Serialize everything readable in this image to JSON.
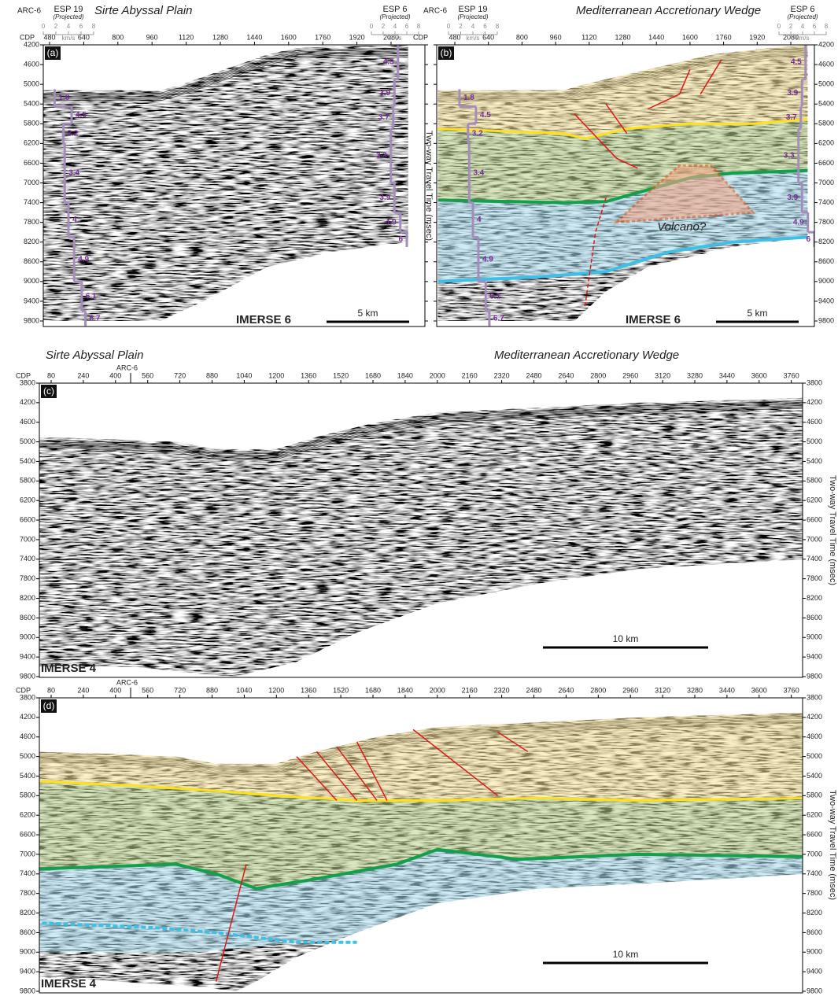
{
  "titles": {
    "sirte": "Sirte Abyssal Plain",
    "wedge": "Mediterranean Accretionary Wedge"
  },
  "labels": {
    "cdp": "CDP",
    "twt_axis": "Two-way Travel Time (msec)",
    "arc": "ARC-6",
    "esp19": "ESP 19",
    "esp6": "ESP 6",
    "projected": "(Projected)",
    "kms": "km/s",
    "volcano": "Volcano?"
  },
  "letters": [
    "(a)",
    "(b)",
    "(c)",
    "(d)"
  ],
  "top": {
    "section": "IMERSE 6",
    "scale": "5 km",
    "cdp_ticks": [
      480,
      640,
      800,
      960,
      1120,
      1280,
      1440,
      1600,
      1760,
      1920,
      2080
    ],
    "twt_ticks": [
      4200,
      4600,
      5000,
      5400,
      5800,
      6200,
      6600,
      7000,
      7400,
      7800,
      8200,
      8600,
      9000,
      9400,
      9800
    ],
    "log_ticks": [
      0,
      2,
      4,
      6,
      8
    ],
    "left_velocities": [
      1.8,
      4.5,
      3.2,
      3.4,
      4,
      4.9,
      6.1,
      6.7
    ],
    "right_velocities": [
      4.5,
      3.9,
      3.7,
      3.3,
      3.9,
      4.9,
      6
    ]
  },
  "bottom": {
    "section": "IMERSE 4",
    "scale": "10 km",
    "cdp_ticks": [
      80,
      240,
      400,
      560,
      720,
      880,
      1040,
      1200,
      1360,
      1520,
      1680,
      1840,
      2000,
      2160,
      2320,
      2480,
      2640,
      2800,
      2960,
      3120,
      3280,
      3440,
      3600,
      3760
    ],
    "twt_ticks": [
      3800,
      4200,
      4600,
      5000,
      5400,
      5800,
      6200,
      6600,
      7000,
      7400,
      7800,
      8200,
      8600,
      9000,
      9400,
      9800
    ]
  }
}
